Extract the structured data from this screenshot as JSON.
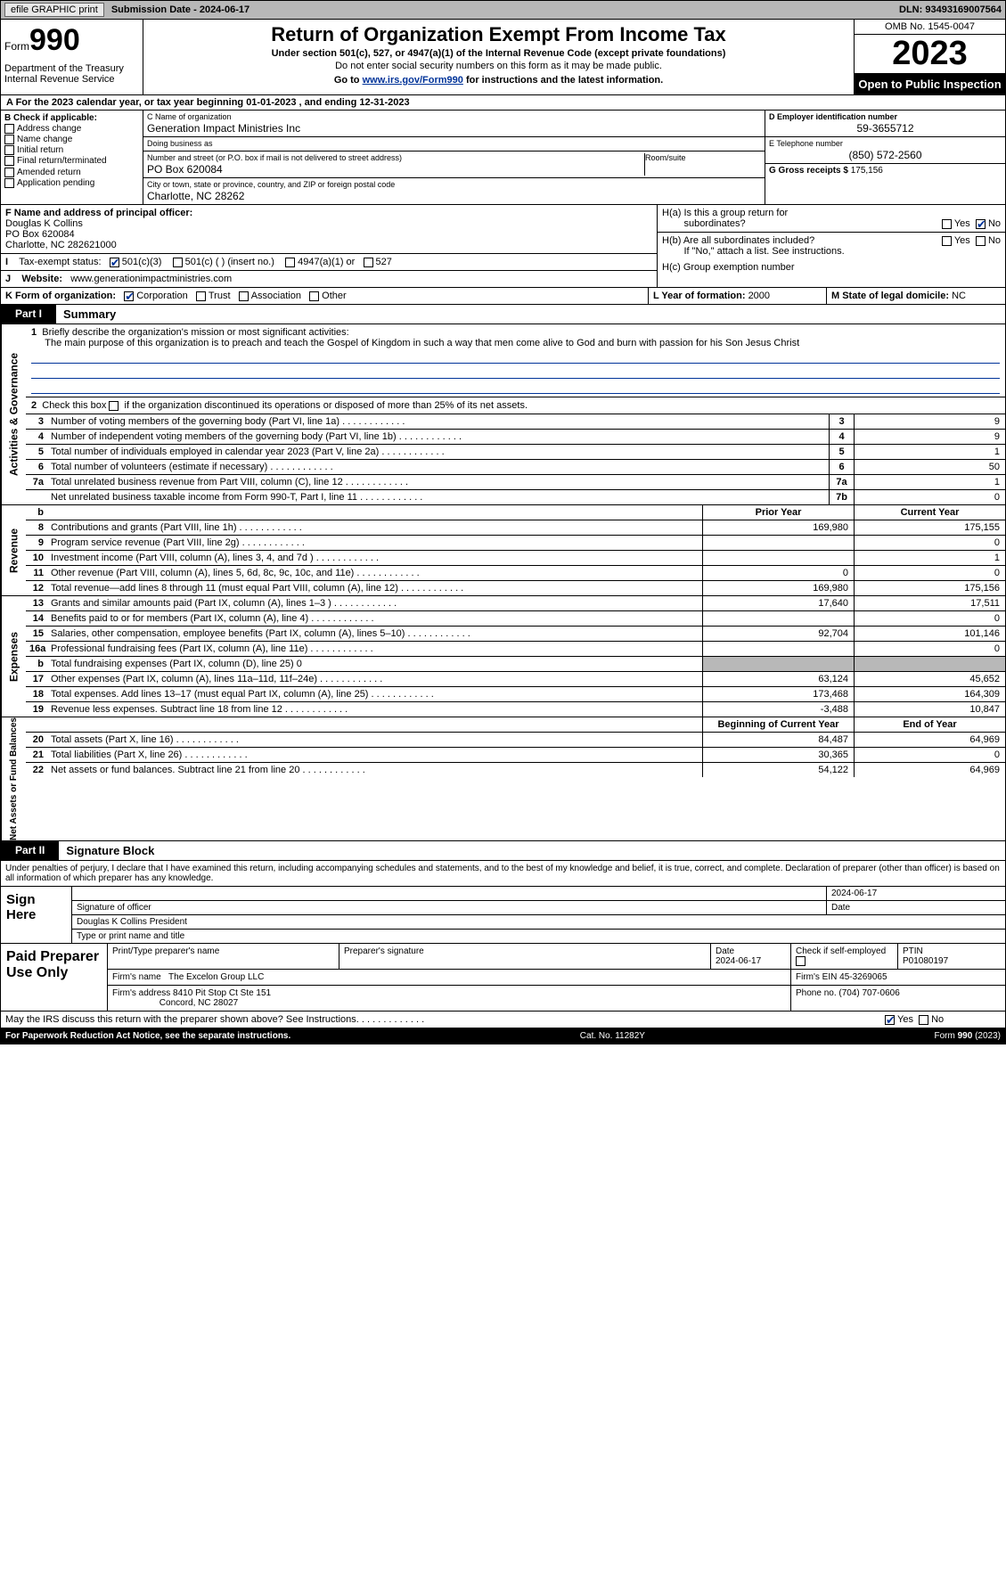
{
  "top": {
    "btn1": "efile GRAPHIC print",
    "sub": "Submission Date - 2024-06-17",
    "dln": "DLN: 93493169007564"
  },
  "hdr": {
    "form": "Form",
    "num": "990",
    "dept": "Department of the Treasury",
    "irs": "Internal Revenue Service",
    "title": "Return of Organization Exempt From Income Tax",
    "sub": "Under section 501(c), 527, or 4947(a)(1) of the Internal Revenue Code (except private foundations)",
    "note": "Do not enter social security numbers on this form as it may be made public.",
    "link_pre": "Go to ",
    "link": "www.irs.gov/Form990",
    "link_post": " for instructions and the latest information.",
    "omb": "OMB No. 1545-0047",
    "yr": "2023",
    "pub": "Open to Public Inspection"
  },
  "lineA": "A For the 2023 calendar year, or tax year beginning 01-01-2023    , and ending 12-31-2023",
  "B": {
    "label": "B Check if applicable:",
    "opts": [
      "Address change",
      "Name change",
      "Initial return",
      "Final return/terminated",
      "Amended return",
      "Application pending"
    ]
  },
  "C": {
    "name_cap": "C Name of organization",
    "name": "Generation Impact Ministries Inc",
    "dba_cap": "Doing business as",
    "dba": "",
    "addr_cap": "Number and street (or P.O. box if mail is not delivered to street address)",
    "addr": "PO Box 620084",
    "room_cap": "Room/suite",
    "city_cap": "City or town, state or province, country, and ZIP or foreign postal code",
    "city": "Charlotte, NC   28262"
  },
  "D": {
    "cap": "D Employer identification number",
    "val": "59-3655712"
  },
  "E": {
    "cap": "E Telephone number",
    "val": "(850) 572-2560"
  },
  "G": {
    "cap": "G Gross receipts $ ",
    "val": "175,156"
  },
  "F": {
    "cap": "F  Name and address of principal officer:",
    "name": "Douglas K Collins",
    "addr": "PO Box 620084",
    "city": "Charlotte, NC  282621000"
  },
  "H": {
    "a": "H(a)  Is this a group return for",
    "a2": "subordinates?",
    "b": "H(b)  Are all subordinates included?",
    "b2": "If \"No,\" attach a list. See instructions.",
    "c": "H(c)  Group exemption number ",
    "yes": "Yes",
    "no": "No"
  },
  "I": {
    "cap": "Tax-exempt status:",
    "o1": "501(c)(3)",
    "o2": "501(c) (  ) (insert no.)",
    "o3": "4947(a)(1) or",
    "o4": "527"
  },
  "J": {
    "cap": "Website: ",
    "val": "www.generationimpactministries.com"
  },
  "K": {
    "cap": "K Form of organization:",
    "o1": "Corporation",
    "o2": "Trust",
    "o3": "Association",
    "o4": "Other"
  },
  "L": {
    "cap": "L Year of formation: ",
    "val": "2000"
  },
  "M": {
    "cap": "M State of legal domicile: ",
    "val": "NC"
  },
  "part1": {
    "tab": "Part I",
    "title": "Summary"
  },
  "vtabs": {
    "ag": "Activities & Governance",
    "rev": "Revenue",
    "exp": "Expenses",
    "na": "Net Assets or Fund Balances"
  },
  "s1": {
    "n": "1",
    "t": "Briefly describe the organization's mission or most significant activities:",
    "mission": "The main purpose of this organization is to preach and teach the Gospel of Kingdom in such a way that men come alive to God and burn with passion for his Son Jesus Christ"
  },
  "s2": {
    "n": "2",
    "t": "Check this box ",
    "t2": " if the organization discontinued its operations or disposed of more than 25% of its net assets."
  },
  "rows_ag": [
    {
      "n": "3",
      "t": "Number of voting members of the governing body (Part VI, line 1a)",
      "bn": "3",
      "v": "9"
    },
    {
      "n": "4",
      "t": "Number of independent voting members of the governing body (Part VI, line 1b)",
      "bn": "4",
      "v": "9"
    },
    {
      "n": "5",
      "t": "Total number of individuals employed in calendar year 2023 (Part V, line 2a)",
      "bn": "5",
      "v": "1"
    },
    {
      "n": "6",
      "t": "Total number of volunteers (estimate if necessary)",
      "bn": "6",
      "v": "50"
    },
    {
      "n": "7a",
      "t": "Total unrelated business revenue from Part VIII, column (C), line 12",
      "bn": "7a",
      "v": "1"
    },
    {
      "n": "",
      "t": "Net unrelated business taxable income from Form 990-T, Part I, line 11",
      "bn": "7b",
      "v": "0"
    }
  ],
  "rev_hdr": {
    "py": "Prior Year",
    "cy": "Current Year"
  },
  "rows_rev": [
    {
      "n": "8",
      "t": "Contributions and grants (Part VIII, line 1h)",
      "py": "169,980",
      "cy": "175,155"
    },
    {
      "n": "9",
      "t": "Program service revenue (Part VIII, line 2g)",
      "py": "",
      "cy": "0"
    },
    {
      "n": "10",
      "t": "Investment income (Part VIII, column (A), lines 3, 4, and 7d )",
      "py": "",
      "cy": "1"
    },
    {
      "n": "11",
      "t": "Other revenue (Part VIII, column (A), lines 5, 6d, 8c, 9c, 10c, and 11e)",
      "py": "0",
      "cy": "0"
    },
    {
      "n": "12",
      "t": "Total revenue—add lines 8 through 11 (must equal Part VIII, column (A), line 12)",
      "py": "169,980",
      "cy": "175,156"
    }
  ],
  "rows_exp": [
    {
      "n": "13",
      "t": "Grants and similar amounts paid (Part IX, column (A), lines 1–3 )",
      "py": "17,640",
      "cy": "17,511"
    },
    {
      "n": "14",
      "t": "Benefits paid to or for members (Part IX, column (A), line 4)",
      "py": "",
      "cy": "0"
    },
    {
      "n": "15",
      "t": "Salaries, other compensation, employee benefits (Part IX, column (A), lines 5–10)",
      "py": "92,704",
      "cy": "101,146"
    },
    {
      "n": "16a",
      "t": "Professional fundraising fees (Part IX, column (A), line 11e)",
      "py": "",
      "cy": "0"
    },
    {
      "n": "b",
      "t": "Total fundraising expenses (Part IX, column (D), line 25) 0",
      "py": "shade",
      "cy": "shade"
    },
    {
      "n": "17",
      "t": "Other expenses (Part IX, column (A), lines 11a–11d, 11f–24e)",
      "py": "63,124",
      "cy": "45,652"
    },
    {
      "n": "18",
      "t": "Total expenses. Add lines 13–17 (must equal Part IX, column (A), line 25)",
      "py": "173,468",
      "cy": "164,309"
    },
    {
      "n": "19",
      "t": "Revenue less expenses. Subtract line 18 from line 12",
      "py": "-3,488",
      "cy": "10,847"
    }
  ],
  "na_hdr": {
    "by": "Beginning of Current Year",
    "ey": "End of Year"
  },
  "rows_na": [
    {
      "n": "20",
      "t": "Total assets (Part X, line 16)",
      "py": "84,487",
      "cy": "64,969"
    },
    {
      "n": "21",
      "t": "Total liabilities (Part X, line 26)",
      "py": "30,365",
      "cy": "0"
    },
    {
      "n": "22",
      "t": "Net assets or fund balances. Subtract line 21 from line 20",
      "py": "54,122",
      "cy": "64,969"
    }
  ],
  "part2": {
    "tab": "Part II",
    "title": "Signature Block"
  },
  "sig_text": "Under penalties of perjury, I declare that I have examined this return, including accompanying schedules and statements, and to the best of my knowledge and belief, it is true, correct, and complete. Declaration of preparer (other than officer) is based on all information of which preparer has any knowledge.",
  "sign": {
    "l": "Sign Here",
    "date": "2024-06-17",
    "sig_cap": "Signature of officer",
    "name": "Douglas K Collins  President",
    "name_cap": "Type or print name and title",
    "date_cap": "Date"
  },
  "paid": {
    "l": "Paid Preparer Use Only",
    "pn_cap": "Print/Type preparer's name",
    "ps_cap": "Preparer's signature",
    "d_cap": "Date",
    "d": "2024-06-17",
    "ck": "Check         if self-employed",
    "ptin_cap": "PTIN",
    "ptin": "P01080197",
    "fn_cap": "Firm's name  ",
    "fn": "The Excelon Group LLC",
    "fein_cap": "Firm's EIN  ",
    "fein": "45-3269065",
    "fa_cap": "Firm's address ",
    "fa": "8410 Pit Stop Ct Ste 151",
    "fa2": "Concord, NC  28027",
    "ph_cap": "Phone no. ",
    "ph": "(704) 707-0606"
  },
  "discuss": "May the IRS discuss this return with the preparer shown above? See Instructions.",
  "footer": {
    "l": "For Paperwork Reduction Act Notice, see the separate instructions.",
    "c": "Cat. No. 11282Y",
    "r": "Form 990 (2023)"
  }
}
